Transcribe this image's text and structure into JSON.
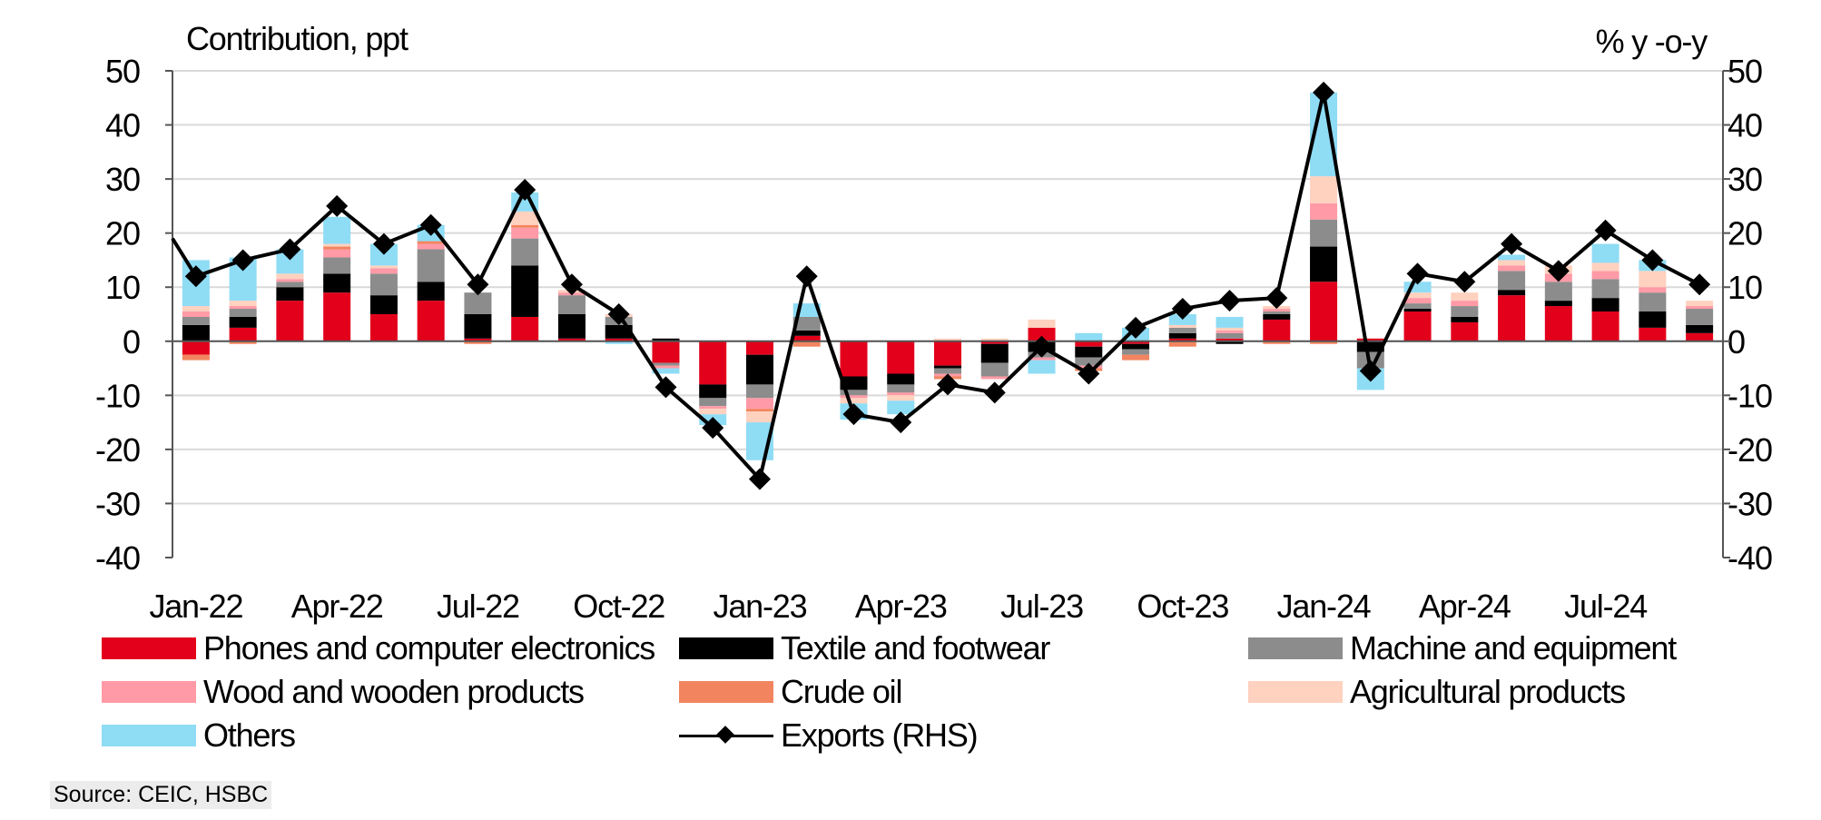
{
  "chart_data": {
    "type": "bar",
    "stacked": true,
    "title": "",
    "ylabel_left": "Contribution, ppt",
    "ylabel_right": "% y -o-y",
    "ylim": [
      -40,
      50
    ],
    "y2lim": [
      -40,
      50
    ],
    "yticks": [
      50,
      40,
      30,
      20,
      10,
      0,
      -10,
      -20,
      -30,
      -40
    ],
    "grid": true,
    "categories": [
      "Jan-22",
      "Feb-22",
      "Mar-22",
      "Apr-22",
      "May-22",
      "Jun-22",
      "Jul-22",
      "Aug-22",
      "Sep-22",
      "Oct-22",
      "Nov-22",
      "Dec-22",
      "Jan-23",
      "Feb-23",
      "Mar-23",
      "Apr-23",
      "May-23",
      "Jun-23",
      "Jul-23",
      "Aug-23",
      "Sep-23",
      "Oct-23",
      "Nov-23",
      "Dec-23",
      "Jan-24",
      "Feb-24",
      "Mar-24",
      "Apr-24",
      "May-24",
      "Jun-24",
      "Jul-24",
      "Aug-24",
      "Sep-24"
    ],
    "xtick_labels": [
      "Jan-22",
      "Apr-22",
      "Jul-22",
      "Oct-22",
      "Jan-23",
      "Apr-23",
      "Jul-23",
      "Oct-23",
      "Jan-24",
      "Apr-24",
      "Jul-24"
    ],
    "series": [
      {
        "name": "Phones and computer electronics",
        "color": "#e3001b",
        "values": [
          -2.5,
          2.5,
          7.5,
          9,
          5,
          7.5,
          0.5,
          4.5,
          0.5,
          0.5,
          -4,
          -8,
          -2.5,
          1,
          -6.5,
          -6,
          -4.5,
          -0.5,
          2.5,
          -1,
          -0.5,
          0.5,
          0.5,
          4,
          11,
          0.5,
          5.5,
          3.5,
          8.5,
          6.5,
          5.5,
          2.5,
          1.5
        ]
      },
      {
        "name": "Textile and footwear",
        "color": "#000000",
        "values": [
          3,
          2,
          2.5,
          3.5,
          3.5,
          3.5,
          4.5,
          9.5,
          4.5,
          2.5,
          0.5,
          -2.5,
          -5.5,
          1,
          -2.5,
          -2,
          -0.5,
          -3.5,
          -2,
          -2,
          -1,
          1,
          -0.5,
          1,
          6.5,
          -2,
          0.5,
          1,
          1,
          1,
          2.5,
          3,
          1.5
        ]
      },
      {
        "name": "Machine and equipment",
        "color": "#8c8c8c",
        "values": [
          1.5,
          1.5,
          1,
          3,
          4,
          6,
          4,
          5,
          3.5,
          1.5,
          -0.5,
          -1.5,
          -2.5,
          2.5,
          -1,
          -1.5,
          -1,
          -2.5,
          -1,
          -1.5,
          -1,
          1,
          1,
          0.5,
          5,
          -3,
          1,
          2,
          3.5,
          3.5,
          3.5,
          3.5,
          3
        ]
      },
      {
        "name": "Wood and wooden products",
        "color": "#ff9aa6",
        "values": [
          1,
          0.5,
          0.5,
          1.5,
          1,
          1,
          0,
          2,
          0.5,
          0,
          -0.5,
          -0.5,
          -2,
          0,
          -0.5,
          -0.5,
          -0.5,
          -0.5,
          -0.5,
          -0.5,
          0,
          0,
          0.5,
          0.5,
          3,
          0,
          1,
          1,
          1,
          1.5,
          1.5,
          1,
          0.5
        ]
      },
      {
        "name": "Crude oil",
        "color": "#f2855f",
        "values": [
          -1,
          -0.5,
          0,
          0.5,
          0,
          0.5,
          -0.5,
          0.5,
          0,
          0,
          0,
          0,
          -0.5,
          -1,
          0,
          0,
          -0.5,
          0,
          0,
          -0.5,
          -1,
          -1,
          0,
          -0.5,
          -0.5,
          0,
          0,
          0,
          0,
          0,
          0,
          0,
          0
        ]
      },
      {
        "name": "Agricultural products",
        "color": "#ffd1bf",
        "values": [
          1,
          1,
          1,
          0.5,
          0.5,
          0,
          0,
          2.5,
          0.5,
          0.5,
          0,
          -1,
          -2,
          0,
          -1,
          -1,
          0.5,
          0.5,
          1.5,
          0,
          0,
          0.5,
          0.5,
          0.5,
          5,
          0,
          1,
          1.5,
          1,
          1.5,
          1.5,
          3,
          1
        ]
      },
      {
        "name": "Others",
        "color": "#8fdcf5",
        "values": [
          8.5,
          8,
          4.5,
          5,
          4,
          3,
          0,
          3.5,
          0,
          -0.5,
          -1,
          -2,
          -7,
          2.5,
          -3,
          -2.5,
          0,
          0,
          -2.5,
          1.5,
          2.5,
          2,
          2,
          0,
          15.5,
          -4,
          2,
          0,
          1,
          0,
          3.5,
          2,
          0
        ]
      },
      {
        "name": "Exports (RHS)",
        "type": "line",
        "axis": "right",
        "color": "#000000",
        "marker": "diamond",
        "values": [
          12,
          15,
          17,
          25,
          18,
          21.5,
          10.5,
          28,
          10.5,
          5,
          -8.5,
          -16,
          -25.5,
          12,
          -13.5,
          -15,
          -8,
          -9.5,
          -1,
          -6,
          2.5,
          6,
          7.5,
          8,
          46,
          -5.5,
          12.5,
          11,
          18,
          13,
          20.5,
          15,
          10.5
        ],
        "start_value": 19
      }
    ]
  },
  "source": "Source: CEIC, HSBC"
}
